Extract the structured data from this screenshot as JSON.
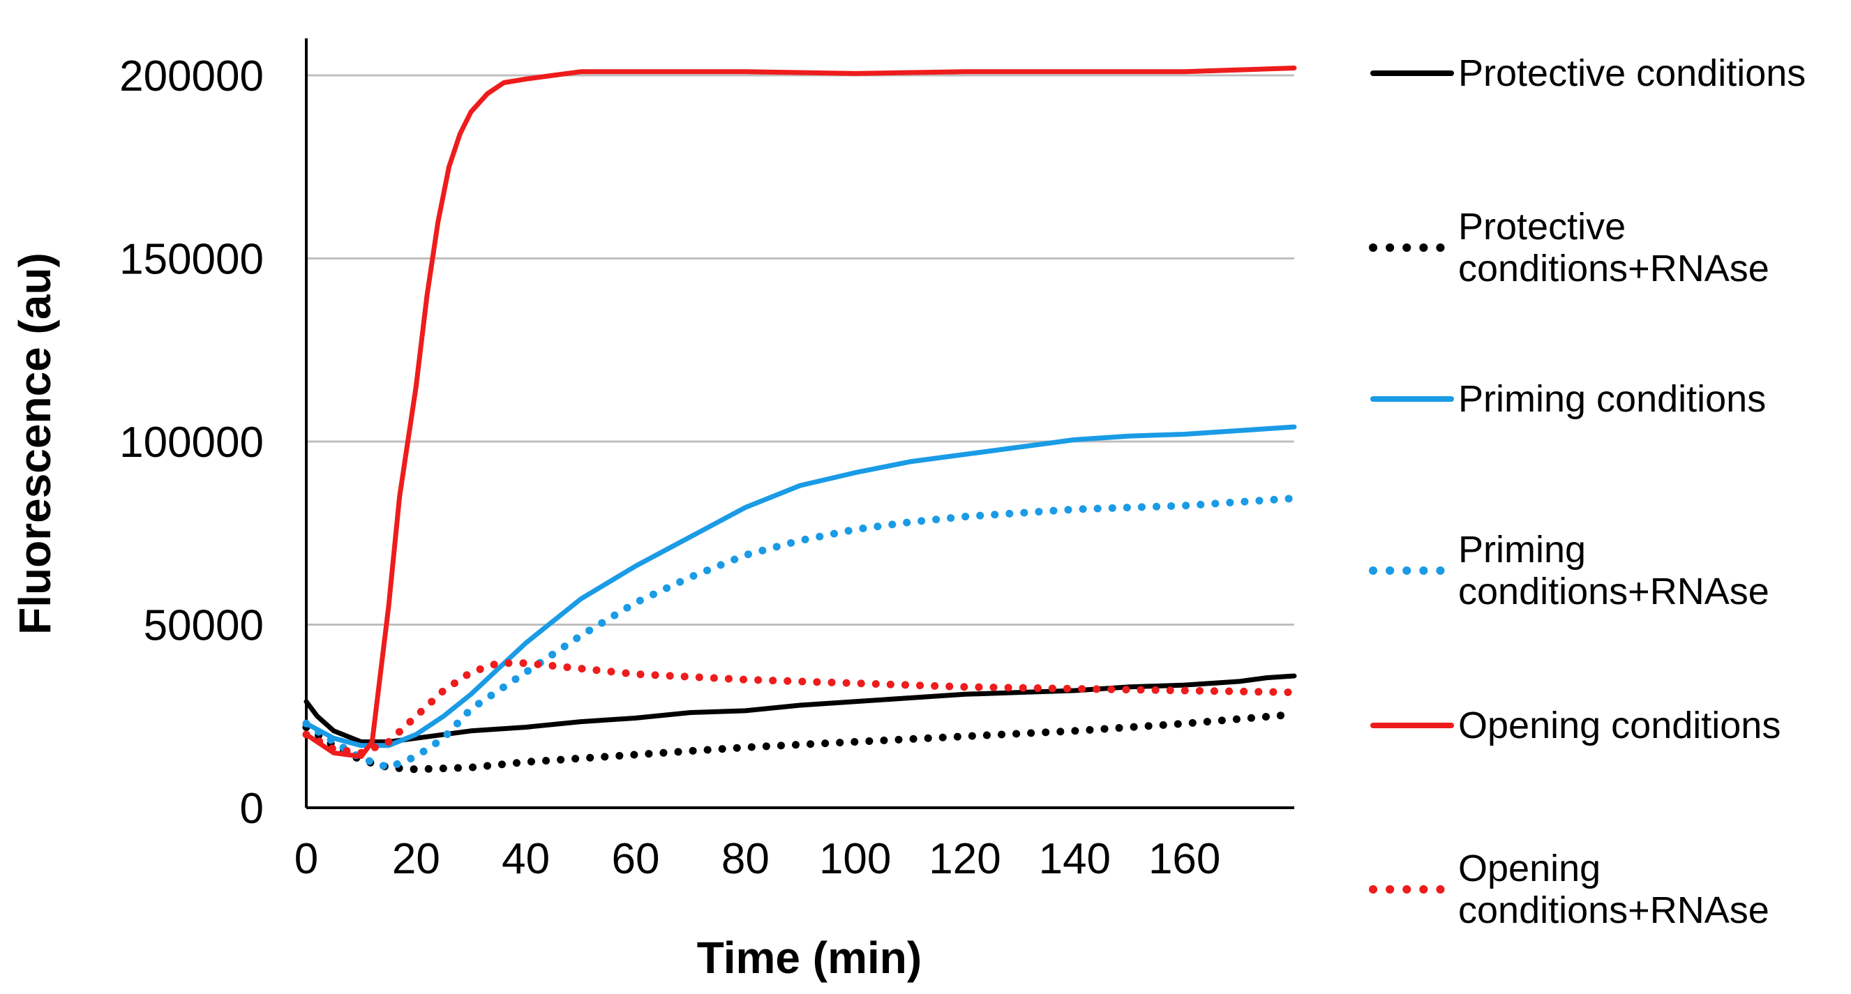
{
  "chart_data": {
    "type": "line",
    "title": "",
    "xlabel": "Time (min)",
    "ylabel": "Fluorescence (au)",
    "xlim": [
      0,
      180
    ],
    "ylim": [
      0,
      200000
    ],
    "xticks": [
      0,
      20,
      40,
      60,
      80,
      100,
      120,
      140,
      160
    ],
    "yticks": [
      0,
      50000,
      100000,
      150000,
      200000
    ],
    "grid": "horizontal",
    "legend_position": "right",
    "series": [
      {
        "name": "Protective conditions",
        "color": "#000000",
        "style": "solid",
        "x": [
          0,
          2,
          5,
          10,
          15,
          20,
          30,
          40,
          50,
          60,
          70,
          80,
          90,
          100,
          110,
          120,
          130,
          140,
          150,
          160,
          170,
          175,
          180
        ],
        "y": [
          29000,
          25000,
          21000,
          18000,
          18000,
          19000,
          21000,
          22000,
          23500,
          24500,
          26000,
          26500,
          28000,
          29000,
          30000,
          31000,
          31500,
          32000,
          33000,
          33500,
          34500,
          35500,
          36000
        ]
      },
      {
        "name": "Protective conditions+RNAse",
        "color": "#000000",
        "style": "dotted",
        "x": [
          0,
          5,
          10,
          15,
          20,
          30,
          40,
          60,
          80,
          100,
          120,
          140,
          160,
          180
        ],
        "y": [
          22000,
          17000,
          13000,
          11000,
          10500,
          11000,
          12500,
          14500,
          16500,
          18000,
          19500,
          21000,
          23000,
          25500
        ]
      },
      {
        "name": "Priming conditions",
        "color": "#1a9be6",
        "style": "solid",
        "x": [
          0,
          5,
          10,
          15,
          20,
          25,
          30,
          35,
          40,
          45,
          50,
          60,
          70,
          80,
          90,
          100,
          110,
          120,
          130,
          140,
          150,
          160,
          170,
          180
        ],
        "y": [
          23000,
          19000,
          17000,
          17000,
          20000,
          25000,
          31000,
          38000,
          45000,
          51000,
          57000,
          66000,
          74000,
          82000,
          88000,
          91500,
          94500,
          96500,
          98500,
          100500,
          101500,
          102000,
          103000,
          104000
        ]
      },
      {
        "name": "Priming conditions+RNAse",
        "color": "#1a9be6",
        "style": "dotted",
        "x": [
          0,
          5,
          10,
          15,
          20,
          25,
          30,
          40,
          50,
          60,
          70,
          80,
          90,
          100,
          110,
          120,
          130,
          140,
          150,
          160,
          170,
          180
        ],
        "y": [
          23000,
          18000,
          13500,
          11000,
          14000,
          19000,
          27000,
          37000,
          47000,
          56000,
          63000,
          69000,
          73000,
          76000,
          78000,
          79500,
          80500,
          81500,
          82000,
          82500,
          83500,
          84500
        ]
      },
      {
        "name": "Opening conditions",
        "color": "#ee1c1c",
        "style": "solid",
        "x": [
          0,
          5,
          10,
          12,
          15,
          17,
          20,
          22,
          24,
          26,
          28,
          30,
          33,
          36,
          40,
          45,
          50,
          60,
          80,
          100,
          120,
          140,
          160,
          180
        ],
        "y": [
          20000,
          15000,
          14000,
          18000,
          55000,
          85000,
          115000,
          140000,
          160000,
          175000,
          184000,
          190000,
          195000,
          198000,
          199000,
          200000,
          201000,
          201000,
          201000,
          200500,
          201000,
          201000,
          201000,
          202000
        ]
      },
      {
        "name": "Opening conditions+RNAse",
        "color": "#ee1c1c",
        "style": "dotted",
        "x": [
          0,
          5,
          10,
          15,
          20,
          25,
          30,
          35,
          40,
          50,
          60,
          80,
          100,
          120,
          140,
          160,
          180
        ],
        "y": [
          20000,
          16000,
          15000,
          18000,
          25000,
          32000,
          37000,
          39500,
          39500,
          38000,
          36500,
          35000,
          34000,
          33000,
          32500,
          32000,
          31500
        ]
      }
    ]
  }
}
